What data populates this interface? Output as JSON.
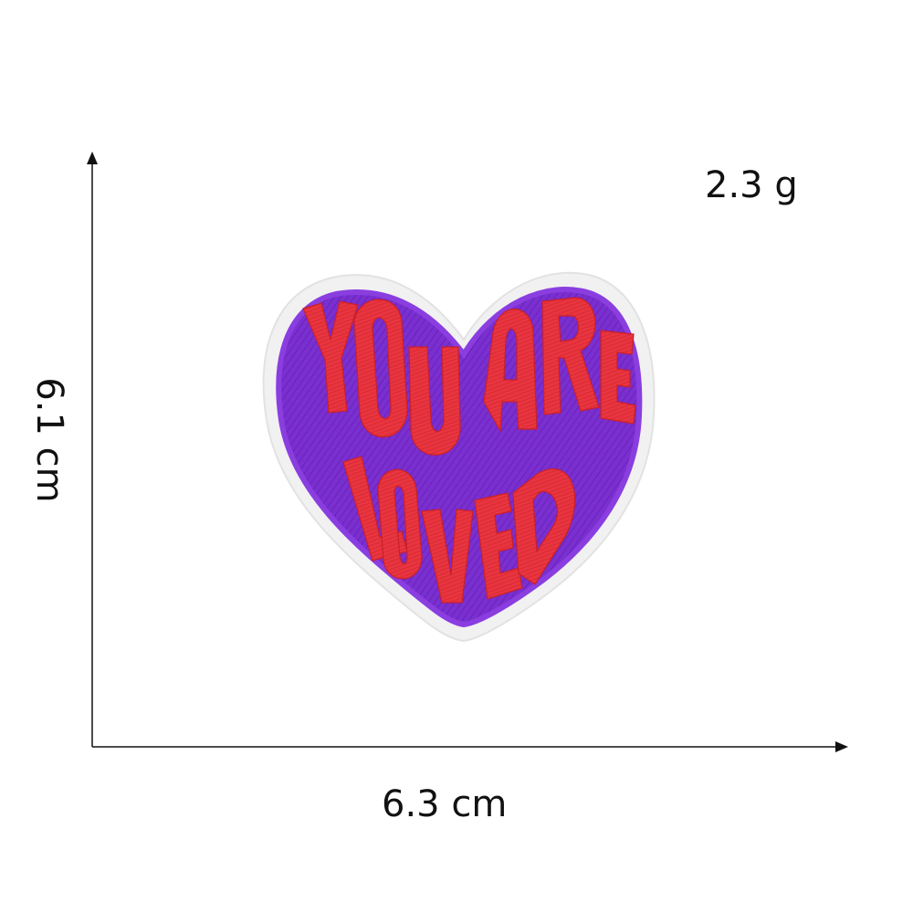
{
  "product": {
    "weight": "2.3 g",
    "width": "6.3 cm",
    "height": "6.1 cm",
    "patch_text": "YOU ARE LOVED"
  },
  "colors": {
    "patch_purple": "#7a2fcf",
    "patch_border": "#f1f1f1",
    "lettering_red": "#e8353f",
    "axis": "#111111"
  }
}
